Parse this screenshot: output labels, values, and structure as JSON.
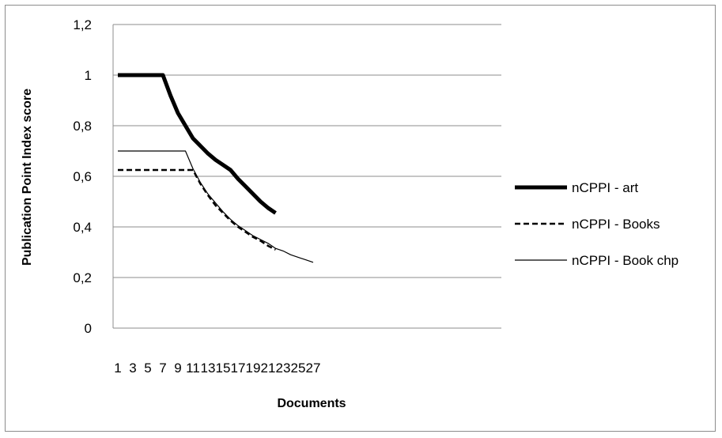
{
  "chart_data": {
    "type": "line",
    "title": "",
    "xlabel": "Documents",
    "ylabel": "Publication Point Index score",
    "x_ticks": [
      "1",
      "3",
      "5",
      "7",
      "9",
      "11",
      "13",
      "15",
      "17",
      "19",
      "21",
      "23",
      "25",
      "27"
    ],
    "y_ticks": [
      "0",
      "0,2",
      "0,4",
      "0,6",
      "0,8",
      "1",
      "1,2"
    ],
    "xlim": [
      1,
      27
    ],
    "ylim": [
      0,
      1.2
    ],
    "grid": "horizontal",
    "legend_position": "right",
    "series": [
      {
        "name": "nCPPI - art",
        "style": "thick-solid",
        "color": "#000000",
        "x": [
          1,
          2,
          3,
          4,
          5,
          6,
          7,
          8,
          9,
          10,
          11,
          12,
          13,
          14,
          15,
          16,
          17,
          18,
          19,
          20,
          21,
          22
        ],
        "y": [
          1,
          1,
          1,
          1,
          1,
          1,
          1,
          0.92,
          0.85,
          0.8,
          0.75,
          0.72,
          0.69,
          0.665,
          0.645,
          0.625,
          0.59,
          0.56,
          0.53,
          0.5,
          0.475,
          0.455
        ]
      },
      {
        "name": "nCPPI - Books",
        "style": "dashed",
        "color": "#000000",
        "x": [
          1,
          2,
          3,
          4,
          5,
          6,
          7,
          8,
          9,
          10,
          11,
          12,
          13,
          14,
          15,
          16,
          17,
          18,
          19,
          20,
          21,
          22
        ],
        "y": [
          0.625,
          0.625,
          0.625,
          0.625,
          0.625,
          0.625,
          0.625,
          0.625,
          0.625,
          0.625,
          0.625,
          0.57,
          0.525,
          0.485,
          0.455,
          0.425,
          0.4,
          0.38,
          0.36,
          0.345,
          0.325,
          0.31
        ]
      },
      {
        "name": "nCPPI - Book chp",
        "style": "thin-solid",
        "color": "#000000",
        "x": [
          1,
          2,
          3,
          4,
          5,
          6,
          7,
          8,
          9,
          10,
          11,
          12,
          13,
          14,
          15,
          16,
          17,
          18,
          19,
          20,
          21,
          22,
          23,
          24,
          25,
          26,
          27
        ],
        "y": [
          0.7,
          0.7,
          0.7,
          0.7,
          0.7,
          0.7,
          0.7,
          0.7,
          0.7,
          0.7,
          0.63,
          0.575,
          0.53,
          0.495,
          0.46,
          0.43,
          0.405,
          0.385,
          0.365,
          0.35,
          0.335,
          0.315,
          0.305,
          0.29,
          0.28,
          0.27,
          0.26
        ]
      }
    ]
  }
}
